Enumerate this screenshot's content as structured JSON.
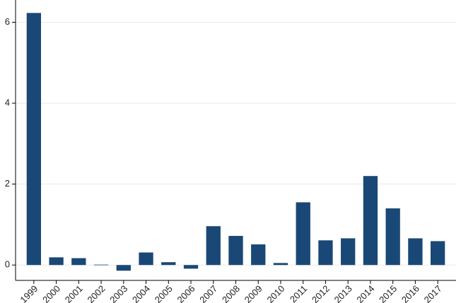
{
  "chart_data": {
    "type": "bar",
    "categories": [
      "1999",
      "2000",
      "2001",
      "2002",
      "2003",
      "2004",
      "2005",
      "2006",
      "2007",
      "2008",
      "2009",
      "2010",
      "2011",
      "2012",
      "2013",
      "2014",
      "2015",
      "2016",
      "2017"
    ],
    "values": [
      6.23,
      0.19,
      0.17,
      0.01,
      -0.14,
      0.31,
      0.07,
      -0.09,
      0.96,
      0.72,
      0.51,
      0.05,
      1.55,
      0.61,
      0.66,
      2.2,
      1.4,
      0.66,
      0.59
    ],
    "color": "#1a4876",
    "ylim": [
      -0.38,
      6.55
    ],
    "yticks": [
      0,
      2,
      4,
      6
    ],
    "grid": true
  }
}
